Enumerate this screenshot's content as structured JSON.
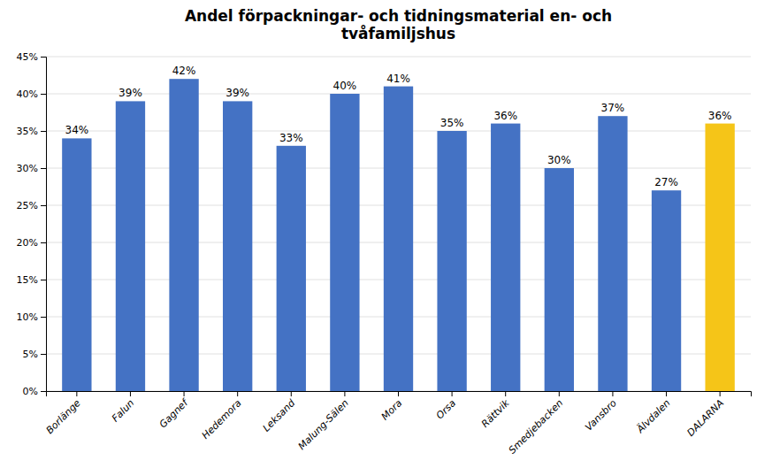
{
  "chart_data": {
    "type": "bar",
    "title": "Andel förpackningar- och tidningsmaterial en- och\ntvåfamiljshus",
    "categories": [
      "Borlänge",
      "Falun",
      "Gagnef",
      "Hedemora",
      "Leksand",
      "Malung-Sälen",
      "Mora",
      "Orsa",
      "Rättvik",
      "Smedjebacken",
      "Vansbro",
      "Älvdalen",
      "DALARNA"
    ],
    "values": [
      34,
      39,
      42,
      39,
      33,
      40,
      41,
      35,
      36,
      30,
      37,
      27,
      36
    ],
    "value_labels": [
      "34%",
      "39%",
      "42%",
      "39%",
      "33%",
      "40%",
      "41%",
      "35%",
      "36%",
      "30%",
      "37%",
      "27%",
      "36%"
    ],
    "colors": [
      "#4472C4",
      "#4472C4",
      "#4472C4",
      "#4472C4",
      "#4472C4",
      "#4472C4",
      "#4472C4",
      "#4472C4",
      "#4472C4",
      "#4472C4",
      "#4472C4",
      "#4472C4",
      "#F5C518"
    ],
    "ylim": [
      0,
      45
    ],
    "yticks": [
      {
        "value": 0,
        "label": "0%"
      },
      {
        "value": 5,
        "label": "5%"
      },
      {
        "value": 10,
        "label": "10%"
      },
      {
        "value": 15,
        "label": "15%"
      },
      {
        "value": 20,
        "label": "20%"
      },
      {
        "value": 25,
        "label": "25%"
      },
      {
        "value": 30,
        "label": "30%"
      },
      {
        "value": 35,
        "label": "35%"
      },
      {
        "value": 40,
        "label": "40%"
      },
      {
        "value": 45,
        "label": "45%"
      }
    ],
    "grid": true,
    "data_labels": true
  }
}
